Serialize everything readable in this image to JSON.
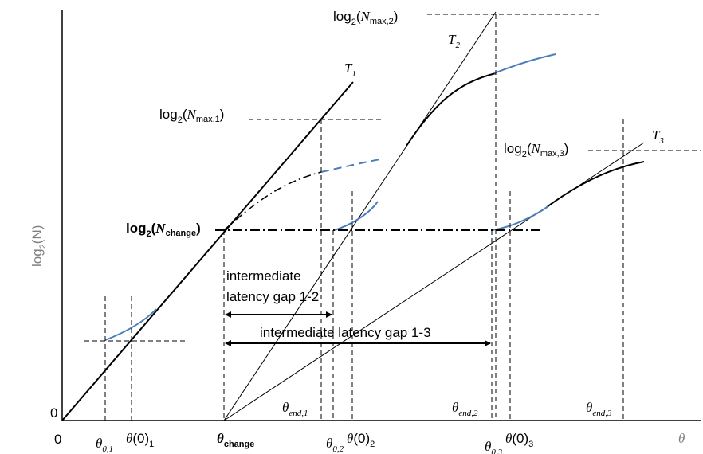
{
  "axes": {
    "y_label_main": "log",
    "y_label_sub": "2",
    "y_label_arg": "(N)",
    "x_label": "θ",
    "origin_x": "0",
    "origin_y": "0"
  },
  "tangents": {
    "t1": {
      "main": "T",
      "sub": "1"
    },
    "t2": {
      "main": "T",
      "sub": "2"
    },
    "t3": {
      "main": "T",
      "sub": "3"
    }
  },
  "levels": {
    "nmax1": {
      "pre": "log",
      "base": "2",
      "open": "(",
      "n": "N",
      "sub": "max,1",
      "close": ")"
    },
    "nmax2": {
      "pre": "log",
      "base": "2",
      "open": "(",
      "n": "N",
      "sub": "max,2",
      "close": ")"
    },
    "nmax3": {
      "pre": "log",
      "base": "2",
      "open": "(",
      "n": "N",
      "sub": "max,3",
      "close": ")"
    },
    "nchange": {
      "pre": "log",
      "base": "2",
      "open": "(",
      "n": "N",
      "sub": "change",
      "close": ")"
    }
  },
  "x_markers": {
    "theta01": {
      "main": "θ",
      "sub": "0,1"
    },
    "theta0_1": {
      "main": "θ",
      "arg": "(0)",
      "sub": "1"
    },
    "theta_change": {
      "main": "θ",
      "sub": "change"
    },
    "theta02": {
      "main": "θ",
      "sub": "0,2"
    },
    "theta0_2": {
      "main": "θ",
      "arg": "(0)",
      "sub": "2"
    },
    "theta03": {
      "main": "θ",
      "sub": "0,3"
    },
    "theta0_3": {
      "main": "θ",
      "arg": "(0)",
      "sub": "3"
    },
    "theta_end1": {
      "main": "θ",
      "sub": "end,1"
    },
    "theta_end2": {
      "main": "θ",
      "sub": "end,2"
    },
    "theta_end3": {
      "main": "θ",
      "sub": "end,3"
    }
  },
  "gaps": {
    "gap12_line1": "intermediate",
    "gap12_line2": "latency gap 1-2",
    "gap13": "intermediate latency gap 1-3"
  },
  "colors": {
    "curve_blue": "#4a7ebb",
    "line": "#000000",
    "axis_label": "#7f7f7f"
  }
}
